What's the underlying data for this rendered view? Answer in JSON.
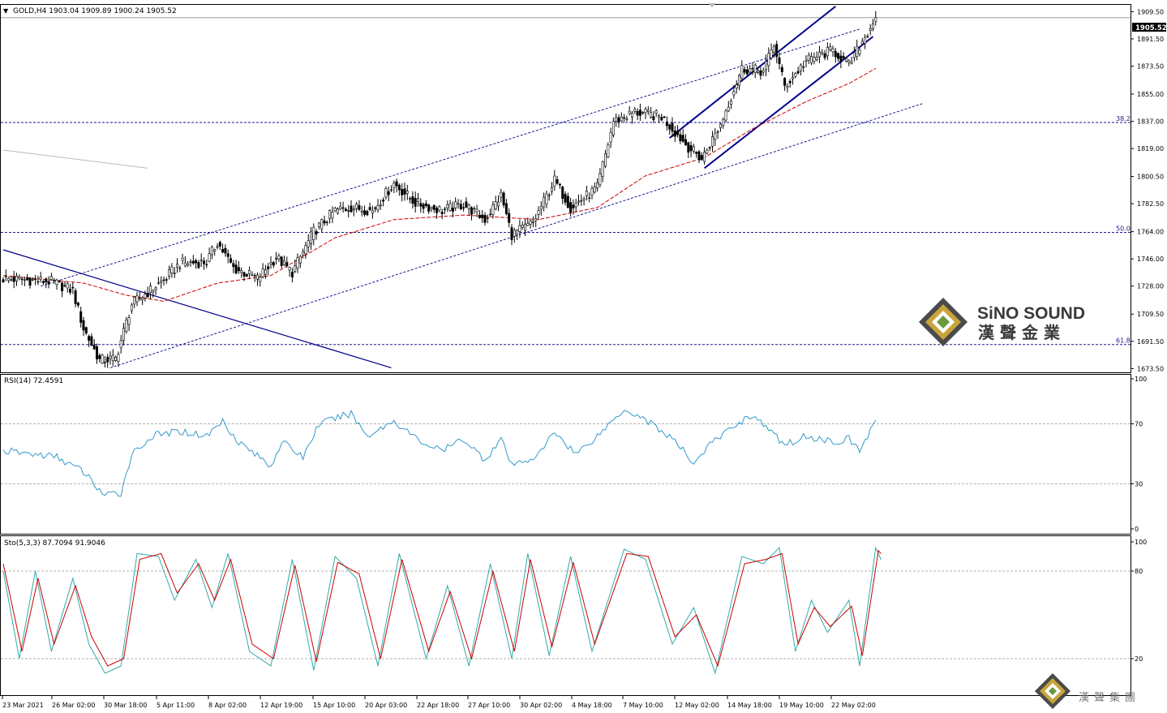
{
  "symbol_header": "GOLD,H4  1903.04 1909.89 1900.24 1905.52",
  "current_price_label": "1905.52",
  "colors": {
    "bull_candle": "#ffffff",
    "bear_candle": "#000000",
    "ma_line": "#cc0000",
    "channel_line": "#00008b",
    "fib_line": "#1a1a8c",
    "rsi_line": "#3399cc",
    "stoch_main": "#33aaaa",
    "stoch_signal": "#cc0000"
  },
  "branding": {
    "name_en": "SiNO SOUND",
    "name_cn": "漢聲金業",
    "name_cn_small": "漢聲集團"
  },
  "chart_data": [
    {
      "type": "candlestick",
      "title": "GOLD,H4",
      "ohlc_last": {
        "open": 1903.04,
        "high": 1909.89,
        "low": 1900.24,
        "close": 1905.52
      },
      "y_ticks": [
        1909.5,
        1891.5,
        1873.5,
        1855.0,
        1837.0,
        1819.0,
        1800.5,
        1782.5,
        1764.0,
        1746.0,
        1728.0,
        1709.5,
        1691.5,
        1673.5
      ],
      "ylim": [
        1671,
        1914
      ],
      "x_ticks": [
        "23 Mar 2021",
        "26 Mar 02:00",
        "30 Mar 18:00",
        "5 Apr 11:00",
        "8 Apr 02:00",
        "12 Apr 19:00",
        "15 Apr 10:00",
        "20 Apr 03:00",
        "22 Apr 18:00",
        "27 Apr 10:00",
        "30 Apr 02:00",
        "4 May 18:00",
        "7 May 10:00",
        "12 May 02:00",
        "14 May 18:00",
        "19 May 10:00",
        "22 May 02:00"
      ],
      "fibonacci_levels": [
        {
          "label": "38.2",
          "price": 1836.2
        },
        {
          "label": "50.0",
          "price": 1763.5
        },
        {
          "label": "61.8",
          "price": 1689.4
        }
      ],
      "price_path": [
        {
          "bar": 0,
          "price": 1733
        },
        {
          "bar": 18,
          "price": 1731
        },
        {
          "bar": 26,
          "price": 1725
        },
        {
          "bar": 30,
          "price": 1700
        },
        {
          "bar": 36,
          "price": 1679
        },
        {
          "bar": 42,
          "price": 1680
        },
        {
          "bar": 48,
          "price": 1716
        },
        {
          "bar": 60,
          "price": 1732
        },
        {
          "bar": 66,
          "price": 1743
        },
        {
          "bar": 76,
          "price": 1744
        },
        {
          "bar": 80,
          "price": 1757
        },
        {
          "bar": 86,
          "price": 1740
        },
        {
          "bar": 95,
          "price": 1733
        },
        {
          "bar": 102,
          "price": 1747
        },
        {
          "bar": 108,
          "price": 1737
        },
        {
          "bar": 116,
          "price": 1764
        },
        {
          "bar": 124,
          "price": 1778
        },
        {
          "bar": 130,
          "price": 1780
        },
        {
          "bar": 138,
          "price": 1778
        },
        {
          "bar": 146,
          "price": 1796
        },
        {
          "bar": 154,
          "price": 1783
        },
        {
          "bar": 164,
          "price": 1778
        },
        {
          "bar": 172,
          "price": 1782
        },
        {
          "bar": 180,
          "price": 1772
        },
        {
          "bar": 186,
          "price": 1788
        },
        {
          "bar": 190,
          "price": 1762
        },
        {
          "bar": 198,
          "price": 1770
        },
        {
          "bar": 206,
          "price": 1798
        },
        {
          "bar": 212,
          "price": 1780
        },
        {
          "bar": 222,
          "price": 1793
        },
        {
          "bar": 228,
          "price": 1837
        },
        {
          "bar": 236,
          "price": 1843
        },
        {
          "bar": 246,
          "price": 1840
        },
        {
          "bar": 256,
          "price": 1820
        },
        {
          "bar": 261,
          "price": 1812
        },
        {
          "bar": 268,
          "price": 1835
        },
        {
          "bar": 276,
          "price": 1872
        },
        {
          "bar": 284,
          "price": 1870
        },
        {
          "bar": 288,
          "price": 1888
        },
        {
          "bar": 292,
          "price": 1860
        },
        {
          "bar": 300,
          "price": 1877
        },
        {
          "bar": 310,
          "price": 1884
        },
        {
          "bar": 316,
          "price": 1874
        },
        {
          "bar": 322,
          "price": 1893
        },
        {
          "bar": 326,
          "price": 1905.5
        }
      ],
      "ma_path": [
        {
          "bar": 0,
          "price": 1735
        },
        {
          "bar": 30,
          "price": 1730
        },
        {
          "bar": 46,
          "price": 1722
        },
        {
          "bar": 60,
          "price": 1718
        },
        {
          "bar": 80,
          "price": 1730
        },
        {
          "bar": 100,
          "price": 1735
        },
        {
          "bar": 124,
          "price": 1760
        },
        {
          "bar": 146,
          "price": 1772
        },
        {
          "bar": 172,
          "price": 1775
        },
        {
          "bar": 200,
          "price": 1772
        },
        {
          "bar": 222,
          "price": 1780
        },
        {
          "bar": 240,
          "price": 1801
        },
        {
          "bar": 262,
          "price": 1813
        },
        {
          "bar": 280,
          "price": 1832
        },
        {
          "bar": 300,
          "price": 1850
        },
        {
          "bar": 316,
          "price": 1862
        },
        {
          "bar": 326,
          "price": 1872
        }
      ],
      "trend_lines": [
        {
          "name": "upper-dashed-channel",
          "style": "dashed",
          "p1": {
            "bar": 14,
            "price": 1728
          },
          "p2": {
            "bar": 320,
            "price": 1898
          }
        },
        {
          "name": "lower-dashed-channel",
          "style": "dashed",
          "p1": {
            "bar": 40,
            "price": 1674
          },
          "p2": {
            "bar": 344,
            "price": 1849
          }
        },
        {
          "name": "descending-trendline",
          "style": "solid",
          "p1": {
            "bar": 0,
            "price": 1752
          },
          "p2": {
            "bar": 145,
            "price": 1674
          }
        },
        {
          "name": "rising-channel-upper",
          "style": "solid",
          "p1": {
            "bar": 249,
            "price": 1826
          },
          "p2": {
            "bar": 311,
            "price": 1913
          }
        },
        {
          "name": "rising-channel-lower",
          "style": "solid",
          "p1": {
            "bar": 262,
            "price": 1806
          },
          "p2": {
            "bar": 325,
            "price": 1893
          }
        },
        {
          "name": "faint-grey-line",
          "style": "grey",
          "p1": {
            "bar": 0,
            "price": 1818
          },
          "p2": {
            "bar": 54,
            "price": 1806
          }
        }
      ]
    },
    {
      "type": "line",
      "title": "RSI(14) 72.4591",
      "y_ticks": [
        100,
        70,
        30,
        0
      ],
      "ylim": [
        0,
        100
      ],
      "levels": [
        70,
        30
      ],
      "series": [
        {
          "name": "RSI(14)",
          "values": [
            {
              "bar": 0,
              "v": 52
            },
            {
              "bar": 10,
              "v": 50
            },
            {
              "bar": 20,
              "v": 48
            },
            {
              "bar": 30,
              "v": 38
            },
            {
              "bar": 38,
              "v": 22
            },
            {
              "bar": 44,
              "v": 24
            },
            {
              "bar": 48,
              "v": 50
            },
            {
              "bar": 56,
              "v": 62
            },
            {
              "bar": 66,
              "v": 65
            },
            {
              "bar": 76,
              "v": 62
            },
            {
              "bar": 82,
              "v": 72
            },
            {
              "bar": 88,
              "v": 58
            },
            {
              "bar": 100,
              "v": 42
            },
            {
              "bar": 104,
              "v": 58
            },
            {
              "bar": 112,
              "v": 48
            },
            {
              "bar": 118,
              "v": 70
            },
            {
              "bar": 130,
              "v": 77
            },
            {
              "bar": 136,
              "v": 62
            },
            {
              "bar": 146,
              "v": 72
            },
            {
              "bar": 156,
              "v": 58
            },
            {
              "bar": 164,
              "v": 52
            },
            {
              "bar": 172,
              "v": 60
            },
            {
              "bar": 180,
              "v": 46
            },
            {
              "bar": 186,
              "v": 60
            },
            {
              "bar": 190,
              "v": 42
            },
            {
              "bar": 200,
              "v": 49
            },
            {
              "bar": 206,
              "v": 65
            },
            {
              "bar": 214,
              "v": 50
            },
            {
              "bar": 222,
              "v": 62
            },
            {
              "bar": 232,
              "v": 80
            },
            {
              "bar": 240,
              "v": 73
            },
            {
              "bar": 250,
              "v": 60
            },
            {
              "bar": 258,
              "v": 44
            },
            {
              "bar": 264,
              "v": 56
            },
            {
              "bar": 274,
              "v": 70
            },
            {
              "bar": 280,
              "v": 76
            },
            {
              "bar": 292,
              "v": 56
            },
            {
              "bar": 300,
              "v": 62
            },
            {
              "bar": 310,
              "v": 58
            },
            {
              "bar": 316,
              "v": 60
            },
            {
              "bar": 320,
              "v": 52
            },
            {
              "bar": 326,
              "v": 72.46
            }
          ]
        }
      ]
    },
    {
      "type": "line",
      "title": "Sto(5,3,3) 87.7094 91.9046",
      "y_ticks": [
        100,
        80,
        20
      ],
      "ylim": [
        0,
        100
      ],
      "levels": [
        80,
        20
      ],
      "series": [
        {
          "name": "Sto main",
          "values": [
            {
              "bar": 0,
              "v": 80
            },
            {
              "bar": 6,
              "v": 20
            },
            {
              "bar": 12,
              "v": 80
            },
            {
              "bar": 18,
              "v": 25
            },
            {
              "bar": 26,
              "v": 75
            },
            {
              "bar": 32,
              "v": 30
            },
            {
              "bar": 38,
              "v": 10
            },
            {
              "bar": 44,
              "v": 15
            },
            {
              "bar": 50,
              "v": 92
            },
            {
              "bar": 58,
              "v": 90
            },
            {
              "bar": 64,
              "v": 60
            },
            {
              "bar": 72,
              "v": 88
            },
            {
              "bar": 78,
              "v": 55
            },
            {
              "bar": 84,
              "v": 92
            },
            {
              "bar": 92,
              "v": 25
            },
            {
              "bar": 100,
              "v": 15
            },
            {
              "bar": 108,
              "v": 88
            },
            {
              "bar": 116,
              "v": 12
            },
            {
              "bar": 124,
              "v": 90
            },
            {
              "bar": 132,
              "v": 75
            },
            {
              "bar": 140,
              "v": 15
            },
            {
              "bar": 148,
              "v": 92
            },
            {
              "bar": 158,
              "v": 20
            },
            {
              "bar": 166,
              "v": 70
            },
            {
              "bar": 174,
              "v": 15
            },
            {
              "bar": 182,
              "v": 85
            },
            {
              "bar": 190,
              "v": 20
            },
            {
              "bar": 196,
              "v": 92
            },
            {
              "bar": 204,
              "v": 22
            },
            {
              "bar": 212,
              "v": 90
            },
            {
              "bar": 220,
              "v": 25
            },
            {
              "bar": 232,
              "v": 95
            },
            {
              "bar": 240,
              "v": 88
            },
            {
              "bar": 250,
              "v": 30
            },
            {
              "bar": 258,
              "v": 55
            },
            {
              "bar": 266,
              "v": 10
            },
            {
              "bar": 276,
              "v": 90
            },
            {
              "bar": 284,
              "v": 85
            },
            {
              "bar": 290,
              "v": 96
            },
            {
              "bar": 296,
              "v": 25
            },
            {
              "bar": 302,
              "v": 60
            },
            {
              "bar": 308,
              "v": 38
            },
            {
              "bar": 316,
              "v": 60
            },
            {
              "bar": 320,
              "v": 15
            },
            {
              "bar": 326,
              "v": 96
            },
            {
              "bar": 328,
              "v": 87.71
            }
          ]
        },
        {
          "name": "Sto signal",
          "values": [
            {
              "bar": 0,
              "v": 85
            },
            {
              "bar": 7,
              "v": 25
            },
            {
              "bar": 13,
              "v": 75
            },
            {
              "bar": 19,
              "v": 30
            },
            {
              "bar": 27,
              "v": 70
            },
            {
              "bar": 33,
              "v": 35
            },
            {
              "bar": 39,
              "v": 15
            },
            {
              "bar": 45,
              "v": 20
            },
            {
              "bar": 51,
              "v": 88
            },
            {
              "bar": 59,
              "v": 92
            },
            {
              "bar": 65,
              "v": 65
            },
            {
              "bar": 73,
              "v": 85
            },
            {
              "bar": 79,
              "v": 60
            },
            {
              "bar": 85,
              "v": 88
            },
            {
              "bar": 93,
              "v": 30
            },
            {
              "bar": 101,
              "v": 20
            },
            {
              "bar": 109,
              "v": 84
            },
            {
              "bar": 117,
              "v": 18
            },
            {
              "bar": 125,
              "v": 86
            },
            {
              "bar": 133,
              "v": 78
            },
            {
              "bar": 141,
              "v": 20
            },
            {
              "bar": 149,
              "v": 88
            },
            {
              "bar": 159,
              "v": 25
            },
            {
              "bar": 167,
              "v": 66
            },
            {
              "bar": 175,
              "v": 20
            },
            {
              "bar": 183,
              "v": 80
            },
            {
              "bar": 191,
              "v": 25
            },
            {
              "bar": 197,
              "v": 88
            },
            {
              "bar": 205,
              "v": 28
            },
            {
              "bar": 213,
              "v": 86
            },
            {
              "bar": 221,
              "v": 30
            },
            {
              "bar": 233,
              "v": 92
            },
            {
              "bar": 241,
              "v": 90
            },
            {
              "bar": 251,
              "v": 35
            },
            {
              "bar": 259,
              "v": 50
            },
            {
              "bar": 267,
              "v": 15
            },
            {
              "bar": 277,
              "v": 85
            },
            {
              "bar": 285,
              "v": 88
            },
            {
              "bar": 291,
              "v": 92
            },
            {
              "bar": 297,
              "v": 30
            },
            {
              "bar": 303,
              "v": 55
            },
            {
              "bar": 309,
              "v": 42
            },
            {
              "bar": 317,
              "v": 56
            },
            {
              "bar": 321,
              "v": 22
            },
            {
              "bar": 327,
              "v": 94
            },
            {
              "bar": 328,
              "v": 91.9
            }
          ]
        }
      ]
    }
  ]
}
